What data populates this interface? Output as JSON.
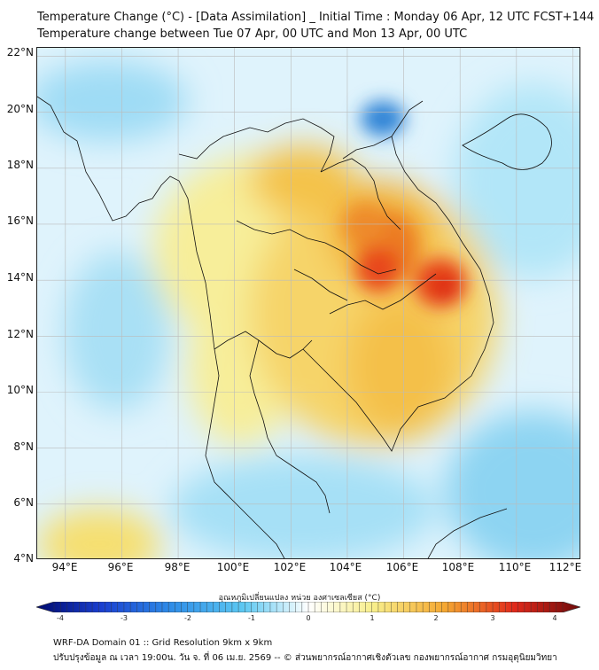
{
  "title": {
    "line1": "Temperature Change (°C) - [Data Assimilation] _ Initial Time : Monday 06 Apr, 12 UTC FCST+144",
    "line2": "Temperature change between Tue 07 Apr, 00 UTC and Mon 13 Apr, 00 UTC"
  },
  "map": {
    "lat_labels": [
      "22°N",
      "20°N",
      "18°N",
      "16°N",
      "14°N",
      "12°N",
      "10°N",
      "8°N",
      "6°N",
      "4°N"
    ],
    "lon_labels": [
      "94°E",
      "96°E",
      "98°E",
      "100°E",
      "102°E",
      "104°E",
      "106°E",
      "108°E",
      "110°E",
      "112°E"
    ],
    "lat_range": [
      4,
      22.3
    ],
    "lon_range": [
      93,
      112.3
    ],
    "grid": true
  },
  "colorbar": {
    "title": "อุณหภูมิเปลี่ยนแปลง หน่วย องศาเซลเซียส (°C)",
    "ticks": [
      "-4",
      "-3",
      "-2",
      "-1",
      "0",
      "1",
      "2",
      "3",
      "4"
    ],
    "range": [
      -4,
      4
    ]
  },
  "footer": {
    "line1": "WRF-DA Domain 01 :: Grid Resolution 9km x 9km",
    "line2": "ปรับปรุงข้อมูล ณ เวลา 19:00น. วัน จ. ที่ 06 เม.ย. 2569 -- © ส่วนพยากรณ์อากาศเชิงตัวเลข กองพยากรณ์อากาศ กรมอุตุนิยมวิทยา"
  },
  "colors": {
    "cold_strong": "#1e64c8",
    "cold": "#6cc8f0",
    "neutral": "#e8f6ff",
    "warm_light": "#f7ec8a",
    "warm": "#f5b73a",
    "hot": "#e8331e"
  }
}
